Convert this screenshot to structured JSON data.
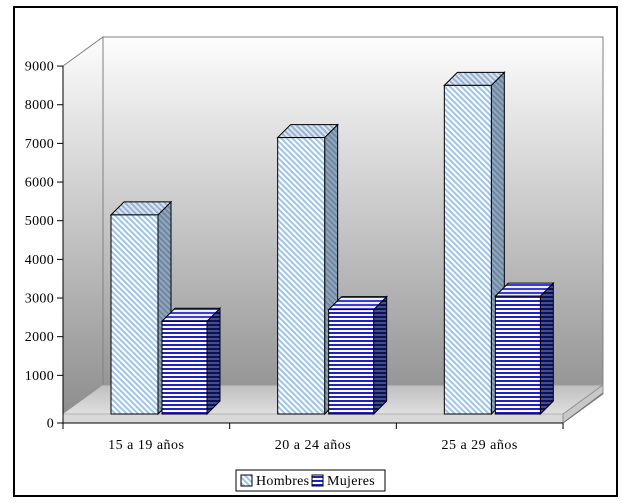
{
  "frame": {
    "background": "#ffffff",
    "border_color": "#000000"
  },
  "chart_data": {
    "type": "bar",
    "projection": "3d-column",
    "title": "",
    "xlabel": "",
    "ylabel": "",
    "categories": [
      "15 a 19 años",
      "20 a 24 años",
      "25 a 29 años"
    ],
    "series": [
      {
        "name": "Hombres",
        "values": [
          5150,
          7150,
          8500
        ],
        "color": "#9cc4ee",
        "pattern": "diagonal-hatch-light-blue"
      },
      {
        "name": "Mujeres",
        "values": [
          2400,
          2700,
          3050
        ],
        "color": "#2121cc",
        "pattern": "horizontal-stripes-blue"
      }
    ],
    "ylim": [
      0,
      9000
    ],
    "ytick_interval": 1000,
    "ytick_labels": [
      "0",
      "1000",
      "2000",
      "3000",
      "4000",
      "5000",
      "6000",
      "7000",
      "8000",
      "9000"
    ],
    "grid": false,
    "legend": {
      "position": "bottom",
      "entries": [
        "Hombres",
        "Mujeres"
      ]
    },
    "wall_gradient_top": "#fdfdfd",
    "wall_gradient_bottom": "#8c8c8c"
  }
}
